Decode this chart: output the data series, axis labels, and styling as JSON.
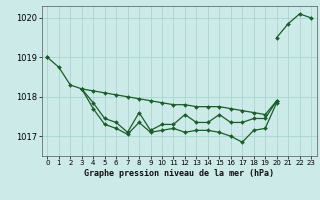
{
  "xlabel": "Graphe pression niveau de la mer (hPa)",
  "ylim": [
    1016.5,
    1020.3
  ],
  "xlim": [
    -0.5,
    23.5
  ],
  "bg_color": "#cceae7",
  "grid_color": "#aad4d0",
  "line_color": "#1a5c2a",
  "line_width": 0.9,
  "marker": "D",
  "marker_size": 2.0,
  "yticks": [
    1017,
    1018,
    1019,
    1020
  ],
  "xticks": [
    0,
    1,
    2,
    3,
    4,
    5,
    6,
    7,
    8,
    9,
    10,
    11,
    12,
    13,
    14,
    15,
    16,
    17,
    18,
    19,
    20,
    21,
    22,
    23
  ],
  "lines": [
    [
      1019.0,
      null,
      null,
      1018.2,
      null,
      null,
      null,
      null,
      null,
      null,
      null,
      null,
      null,
      null,
      null,
      null,
      null,
      null,
      null,
      null,
      1019.5,
      1019.85,
      1020.1,
      1020.0
    ],
    [
      1019.0,
      1018.75,
      1018.3,
      1018.2,
      1018.15,
      1018.1,
      1018.05,
      1018.0,
      1017.95,
      1017.9,
      1017.85,
      1017.8,
      1017.8,
      1017.75,
      1017.75,
      1017.75,
      1017.7,
      1017.65,
      1017.6,
      1017.55,
      1017.9,
      null,
      null,
      null
    ],
    [
      null,
      null,
      null,
      1018.2,
      1017.85,
      1017.45,
      1017.35,
      1017.1,
      1017.6,
      1017.15,
      1017.3,
      1017.3,
      1017.55,
      1017.35,
      1017.35,
      1017.55,
      1017.35,
      1017.35,
      1017.45,
      1017.45,
      1017.9,
      null,
      null,
      null
    ],
    [
      null,
      null,
      null,
      1018.2,
      1017.7,
      1017.3,
      1017.2,
      1017.05,
      1017.35,
      1017.1,
      1017.15,
      1017.2,
      1017.1,
      1017.15,
      1017.15,
      1017.1,
      1017.0,
      1016.85,
      1017.15,
      1017.2,
      1017.85,
      null,
      null,
      null
    ]
  ]
}
